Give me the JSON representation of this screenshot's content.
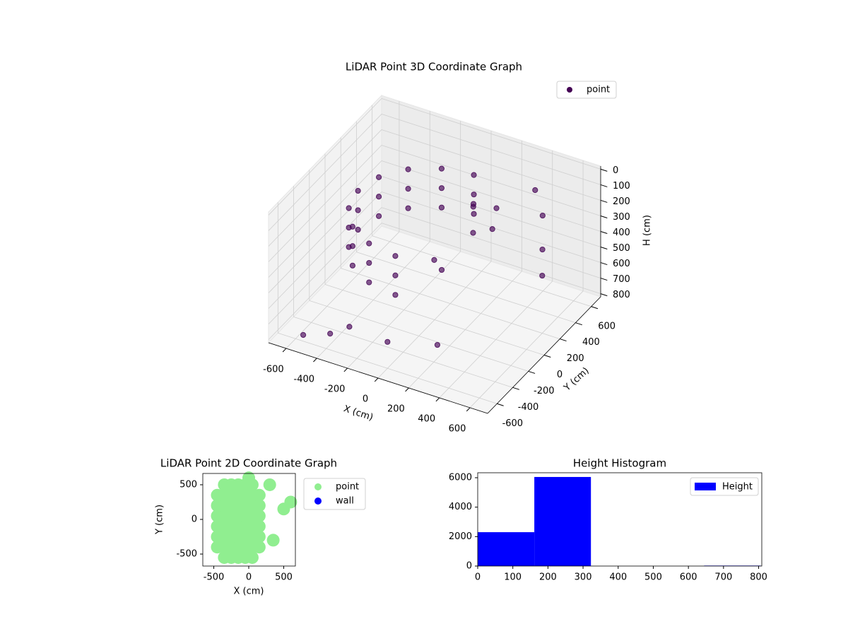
{
  "chart_data": [
    {
      "type": "scatter3d",
      "title": "LiDAR Point 3D Coordinate Graph",
      "xlabel": "X (cm)",
      "ylabel": "Y (cm)",
      "zlabel": "H (cm)",
      "xlim": [
        -715,
        715
      ],
      "ylim": [
        -720,
        720
      ],
      "zlim": [
        820,
        -20
      ],
      "xticks": [
        -600,
        -400,
        -200,
        0,
        200,
        400,
        600
      ],
      "yticks": [
        -600,
        -400,
        -200,
        0,
        200,
        400,
        600
      ],
      "zticks": [
        0,
        100,
        200,
        300,
        400,
        500,
        600,
        700,
        800
      ],
      "legend": "upper right",
      "series": [
        {
          "name": "point",
          "color": "#440154",
          "x": [
            0,
            0,
            0,
            -191,
            -191,
            -191,
            -354,
            -354,
            -354,
            -462,
            -462,
            -462,
            -500,
            -500,
            -500,
            -462,
            -462,
            -462,
            -354,
            -354,
            -354,
            -191,
            -191,
            -191,
            0,
            0,
            0,
            100,
            150,
            200,
            250,
            300,
            100,
            200,
            400,
            500,
            550,
            600,
            -300,
            -400,
            -550,
            0,
            300
          ],
          "y": [
            500,
            500,
            500,
            462,
            462,
            462,
            354,
            354,
            354,
            191,
            191,
            191,
            0,
            0,
            0,
            -191,
            -191,
            -191,
            -354,
            -354,
            -354,
            -462,
            -462,
            -462,
            -500,
            -500,
            -500,
            300,
            200,
            100,
            300,
            150,
            -200,
            -300,
            500,
            400,
            300,
            200,
            -500,
            -550,
            -600,
            -600,
            -550
          ],
          "h": [
            150,
            275,
            400,
            150,
            275,
            400,
            150,
            275,
            400,
            150,
            275,
            400,
            150,
            275,
            400,
            150,
            275,
            400,
            150,
            275,
            400,
            150,
            275,
            400,
            150,
            275,
            400,
            200,
            150,
            250,
            180,
            220,
            300,
            280,
            120,
            200,
            350,
            450,
            700,
            750,
            780,
            650,
            600
          ]
        }
      ]
    },
    {
      "type": "scatter",
      "title": "LiDAR Point 2D Coordinate Graph",
      "xlabel": "X (cm)",
      "ylabel": "Y (cm)",
      "xlim": [
        -657,
        667
      ],
      "ylim": [
        -673,
        663
      ],
      "xticks": [
        -500,
        0,
        500
      ],
      "yticks": [
        -500,
        0,
        500
      ],
      "legend": "outside right",
      "series": [
        {
          "name": "point",
          "color": "#90ee90",
          "x": [
            -450,
            -450,
            -450,
            -450,
            -450,
            -450,
            -350,
            -350,
            -350,
            -350,
            -350,
            -350,
            -350,
            -350,
            -250,
            -250,
            -250,
            -250,
            -250,
            -250,
            -250,
            -250,
            -150,
            -150,
            -150,
            -150,
            -150,
            -150,
            -150,
            -150,
            -50,
            -50,
            -50,
            -50,
            -50,
            -50,
            -50,
            -50,
            50,
            50,
            50,
            50,
            50,
            50,
            50,
            50,
            150,
            150,
            150,
            150,
            150,
            150,
            500,
            600,
            300,
            0,
            350
          ],
          "y": [
            -400,
            -250,
            -100,
            50,
            200,
            350,
            -550,
            -400,
            -250,
            -100,
            50,
            200,
            350,
            500,
            -550,
            -400,
            -250,
            -100,
            50,
            200,
            350,
            500,
            -550,
            -400,
            -250,
            -100,
            50,
            200,
            350,
            500,
            -550,
            -400,
            -250,
            -100,
            50,
            200,
            350,
            500,
            -550,
            -400,
            -250,
            -100,
            50,
            200,
            350,
            500,
            -400,
            -250,
            -100,
            50,
            200,
            350,
            150,
            250,
            500,
            600,
            -300
          ]
        },
        {
          "name": "wall",
          "color": "#0000ff",
          "x": [],
          "y": []
        }
      ]
    },
    {
      "type": "histogram",
      "title": "Height Histogram",
      "xlim": [
        0,
        809
      ],
      "ylim": [
        0,
        6336
      ],
      "xticks": [
        0,
        100,
        200,
        300,
        400,
        500,
        600,
        700,
        800
      ],
      "yticks": [
        0,
        2000,
        4000,
        6000
      ],
      "legend": "upper right",
      "series": [
        {
          "name": "Height",
          "color": "#0000ff",
          "bins": [
            0,
            161.2,
            322.4,
            483.6,
            644.8,
            806
          ],
          "values": [
            2300,
            6050,
            0,
            0,
            30
          ]
        }
      ]
    }
  ]
}
